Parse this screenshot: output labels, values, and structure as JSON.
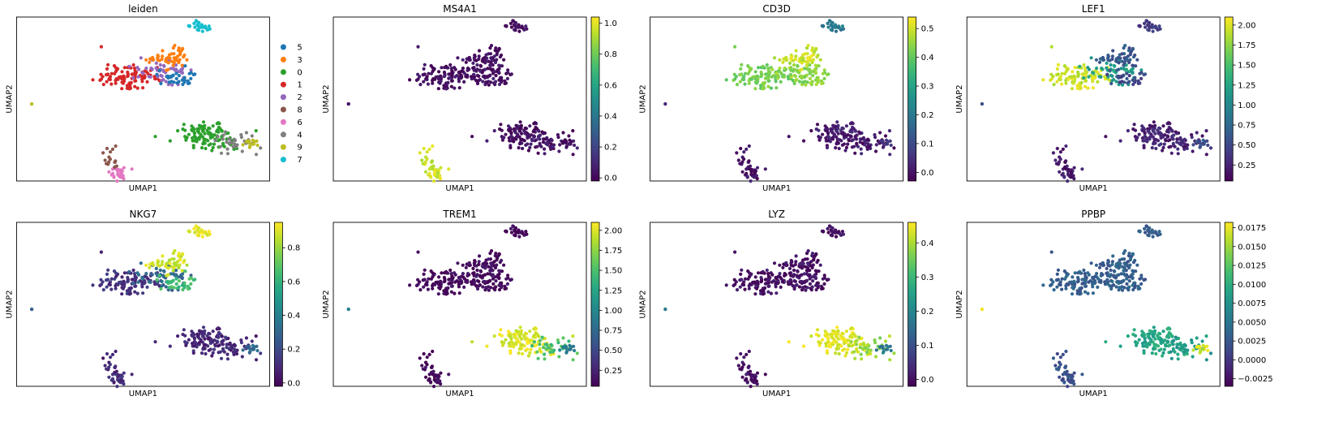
{
  "chart_data": [
    {
      "type": "scatter",
      "title": "leiden",
      "xlabel": "UMAP1",
      "ylabel": "UMAP2",
      "legend": {
        "placement": "right",
        "entries": [
          "5",
          "3",
          "0",
          "1",
          "2",
          "8",
          "6",
          "4",
          "9",
          "7"
        ]
      },
      "colors": {
        "5": "#1f77b4",
        "3": "#ff7f0e",
        "0": "#2ca02c",
        "1": "#d62728",
        "2": "#9467bd",
        "8": "#8c564b",
        "6": "#e377c2",
        "4": "#7f7f7f",
        "9": "#bcbd22",
        "7": "#17becf"
      }
    },
    {
      "type": "scatter",
      "title": "MS4A1",
      "xlabel": "UMAP1",
      "ylabel": "UMAP2",
      "colorbar": {
        "ticks": [
          "0.0",
          "0.2",
          "0.4",
          "0.6",
          "0.8",
          "1.0"
        ],
        "vmin": -0.02,
        "vmax": 1.04
      },
      "cluster_levels": {
        "0": 0.02,
        "1": 0.02,
        "2": 0.03,
        "3": 0.02,
        "4": 0.04,
        "5": 0.03,
        "6": 0.97,
        "7": 0.02,
        "8": 0.96,
        "9": 0.02
      }
    },
    {
      "type": "scatter",
      "title": "CD3D",
      "xlabel": "UMAP1",
      "ylabel": "UMAP2",
      "colorbar": {
        "ticks": [
          "0.0",
          "0.1",
          "0.2",
          "0.3",
          "0.4",
          "0.5"
        ],
        "vmin": -0.03,
        "vmax": 0.54
      },
      "cluster_levels": {
        "0": 0.01,
        "1": 0.42,
        "2": 0.44,
        "3": 0.5,
        "4": 0.01,
        "5": 0.44,
        "6": 0.0,
        "7": 0.2,
        "8": 0.0,
        "9": 0.05
      }
    },
    {
      "type": "scatter",
      "title": "LEF1",
      "xlabel": "UMAP1",
      "ylabel": "UMAP2",
      "colorbar": {
        "ticks": [
          "0.25",
          "0.50",
          "0.75",
          "1.00",
          "1.25",
          "1.50",
          "1.75",
          "2.00"
        ],
        "vmin": 0.05,
        "vmax": 2.1
      },
      "cluster_levels": {
        "0": 0.25,
        "1": 1.95,
        "2": 1.2,
        "3": 0.6,
        "4": 0.25,
        "5": 0.5,
        "6": 0.2,
        "7": 0.4,
        "8": 0.2,
        "9": 0.6
      }
    },
    {
      "type": "scatter",
      "title": "NKG7",
      "xlabel": "UMAP1",
      "ylabel": "UMAP2",
      "colorbar": {
        "ticks": [
          "0.0",
          "0.2",
          "0.4",
          "0.6",
          "0.8"
        ],
        "vmin": -0.02,
        "vmax": 0.95
      },
      "cluster_levels": {
        "0": 0.08,
        "1": 0.12,
        "2": 0.3,
        "3": 0.88,
        "4": 0.1,
        "5": 0.65,
        "6": 0.1,
        "7": 0.92,
        "8": 0.1,
        "9": 0.3
      }
    },
    {
      "type": "scatter",
      "title": "TREM1",
      "xlabel": "UMAP1",
      "ylabel": "UMAP2",
      "colorbar": {
        "ticks": [
          "0.25",
          "0.50",
          "0.75",
          "1.00",
          "1.25",
          "1.50",
          "1.75",
          "2.00"
        ],
        "vmin": 0.05,
        "vmax": 2.1
      },
      "cluster_levels": {
        "0": 2.0,
        "1": 0.08,
        "2": 0.1,
        "3": 0.1,
        "4": 1.5,
        "5": 0.1,
        "6": 0.1,
        "7": 0.1,
        "8": 0.1,
        "9": 0.9
      }
    },
    {
      "type": "scatter",
      "title": "LYZ",
      "xlabel": "UMAP1",
      "ylabel": "UMAP2",
      "colorbar": {
        "ticks": [
          "0.0",
          "0.1",
          "0.2",
          "0.3",
          "0.4"
        ],
        "vmin": -0.02,
        "vmax": 0.46
      },
      "cluster_levels": {
        "0": 0.44,
        "1": 0.0,
        "2": 0.0,
        "3": 0.0,
        "4": 0.38,
        "5": 0.0,
        "6": 0.0,
        "7": 0.0,
        "8": 0.0,
        "9": 0.18
      }
    },
    {
      "type": "scatter",
      "title": "PPBP",
      "xlabel": "UMAP1",
      "ylabel": "UMAP2",
      "colorbar": {
        "ticks": [
          "−0.0025",
          "0.0000",
          "0.0025",
          "0.0050",
          "0.0075",
          "0.0100",
          "0.0125",
          "0.0150",
          "0.0175"
        ],
        "vmin": -0.0035,
        "vmax": 0.0182
      },
      "cluster_levels": {
        "0": 0.0095,
        "1": 0.003,
        "2": 0.003,
        "3": 0.003,
        "4": 0.008,
        "5": 0.003,
        "6": 0.002,
        "7": 0.003,
        "8": 0.002,
        "9": 0.017
      }
    }
  ]
}
